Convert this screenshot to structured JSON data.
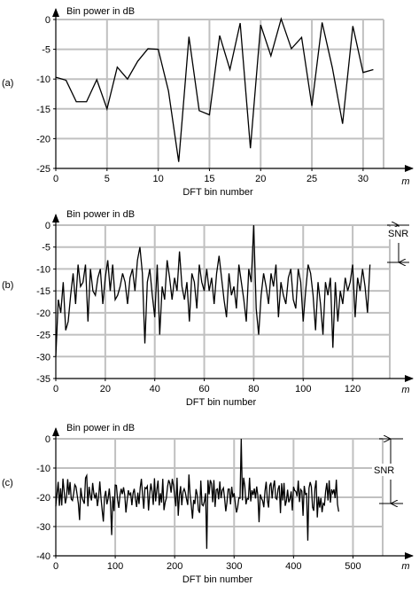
{
  "chart_data": [
    {
      "type": "line",
      "panel_label": "(a)",
      "title": "Bin power in dB",
      "xlabel": "DFT bin number",
      "x_unit_label": "m",
      "xlim": [
        0,
        32
      ],
      "ylim": [
        -25,
        0
      ],
      "xticks": [
        0,
        5,
        10,
        15,
        20,
        25,
        30
      ],
      "yticks": [
        0,
        -5,
        -10,
        -15,
        -20,
        -25
      ],
      "grid": true,
      "x": [
        0,
        1,
        2,
        3,
        4,
        5,
        6,
        7,
        8,
        9,
        10,
        11,
        12,
        13,
        14,
        15,
        16,
        17,
        18,
        19,
        20,
        21,
        22,
        23,
        24,
        25,
        26,
        27,
        28,
        29,
        30,
        31
      ],
      "values": [
        -9.7,
        -10.2,
        -13.8,
        -13.8,
        -10.1,
        -15,
        -8,
        -10,
        -7,
        -4.9,
        -5,
        -12,
        -23.9,
        -2.9,
        -15.3,
        -16,
        -2.7,
        -8.4,
        -0.6,
        -21.6,
        -0.9,
        -6.1,
        0.1,
        -4.9,
        -3,
        -14.5,
        -0.5,
        -8.1,
        -17.5,
        -1.1,
        -8.9,
        -8.4
      ],
      "annotations": []
    },
    {
      "type": "line",
      "panel_label": "(b)",
      "title": "Bin power in dB",
      "xlabel": "DFT bin number",
      "x_unit_label": "m",
      "xlim": [
        0,
        135
      ],
      "ylim": [
        -35,
        0
      ],
      "xticks": [
        0,
        20,
        40,
        60,
        80,
        100,
        120
      ],
      "yticks": [
        0,
        -5,
        -10,
        -15,
        -20,
        -25,
        -30,
        -35
      ],
      "grid": true,
      "x": [
        0,
        1,
        2,
        3,
        4,
        5,
        6,
        7,
        8,
        9,
        10,
        11,
        12,
        13,
        14,
        15,
        16,
        17,
        18,
        19,
        20,
        21,
        22,
        23,
        24,
        25,
        26,
        27,
        28,
        29,
        30,
        31,
        32,
        33,
        34,
        35,
        36,
        37,
        38,
        39,
        40,
        41,
        42,
        43,
        44,
        45,
        46,
        47,
        48,
        49,
        50,
        51,
        52,
        53,
        54,
        55,
        56,
        57,
        58,
        59,
        60,
        61,
        62,
        63,
        64,
        65,
        66,
        67,
        68,
        69,
        70,
        71,
        72,
        73,
        74,
        75,
        76,
        77,
        78,
        79,
        80,
        81,
        82,
        83,
        84,
        85,
        86,
        87,
        88,
        89,
        90,
        91,
        92,
        93,
        94,
        95,
        96,
        97,
        98,
        99,
        100,
        101,
        102,
        103,
        104,
        105,
        106,
        107,
        108,
        109,
        110,
        111,
        112,
        113,
        114,
        115,
        116,
        117,
        118,
        119,
        120,
        121,
        122,
        123,
        124,
        125,
        126,
        127
      ],
      "values": [
        -30,
        -17,
        -20,
        -13,
        -24,
        -22,
        -16,
        -11,
        -18,
        -9,
        -14,
        -13,
        -9,
        -22,
        -10,
        -15,
        -16,
        -12,
        -10,
        -18,
        -12,
        -8,
        -15,
        -9,
        -17,
        -16,
        -14,
        -11,
        -13,
        -18,
        -12,
        -10,
        -15,
        -8,
        -5,
        -11,
        -27,
        -13,
        -10,
        -16,
        -21,
        -9,
        -25,
        -14,
        -17,
        -8,
        -12,
        -17,
        -12,
        -15,
        -6,
        -14,
        -17,
        -13,
        -22,
        -11,
        -13,
        -19,
        -9,
        -13,
        -15,
        -10,
        -15,
        -12,
        -18,
        -11,
        -7,
        -12,
        -17,
        -21,
        -11,
        -16,
        -14,
        -19,
        -9,
        -13,
        -17,
        -22,
        -10,
        -13,
        0,
        -19,
        -25,
        -16,
        -11,
        -14,
        -18,
        -11,
        -14,
        -9,
        -21,
        -13,
        -16,
        -18,
        -12,
        -10,
        -17,
        -19,
        -10,
        -13,
        -22,
        -15,
        -9,
        -11,
        -16,
        -24,
        -13,
        -18,
        -25,
        -13,
        -16,
        -12,
        -28,
        -13,
        -22,
        -15,
        -18,
        -12,
        -15,
        -13,
        -9,
        -21,
        -12,
        -15,
        -10,
        -14,
        -20,
        -9
      ],
      "annotations": [
        "SNR"
      ]
    },
    {
      "type": "line",
      "panel_label": "(c)",
      "title": "Bin power in dB",
      "xlabel": "DFT bin number",
      "x_unit_label": "m",
      "xlim": [
        0,
        550
      ],
      "ylim": [
        -40,
        0
      ],
      "xticks": [
        0,
        100,
        200,
        300,
        400,
        500
      ],
      "yticks": [
        0,
        -10,
        -20,
        -30,
        -40
      ],
      "grid": true,
      "x_step": 2,
      "values": [
        -23.1,
        -18.8,
        -14.7,
        -22.9,
        -16.9,
        -22.8,
        -13.6,
        -17.8,
        -22.1,
        -20.0,
        -13.8,
        -19.2,
        -14.8,
        -20.6,
        -21.1,
        -18.8,
        -15.7,
        -16.4,
        -19.3,
        -22.2,
        -27.8,
        -16.8,
        -19.9,
        -21.2,
        -22.2,
        -13.4,
        -12.6,
        -23.1,
        -16.4,
        -19.3,
        -21.1,
        -15.1,
        -18.7,
        -20.4,
        -18.4,
        -23.0,
        -20.1,
        -14.6,
        -20.1,
        -24.4,
        -28.3,
        -19.8,
        -17.8,
        -22.4,
        -20.4,
        -17.0,
        -21.9,
        -32.9,
        -19.7,
        -24.7,
        -15.8,
        -15.9,
        -20.9,
        -23.6,
        -19.2,
        -17.1,
        -18.9,
        -16.6,
        -19.2,
        -25.2,
        -21.2,
        -17.6,
        -19.2,
        -18.6,
        -22.7,
        -18.6,
        -17.1,
        -20.6,
        -23.3,
        -18.4,
        -22.3,
        -16.7,
        -13.7,
        -19.2,
        -23.9,
        -16.7,
        -17.0,
        -16.2,
        -24.5,
        -19.0,
        -15.3,
        -18.0,
        -22.6,
        -13.5,
        -21.4,
        -17.4,
        -14.3,
        -22.8,
        -18.6,
        -21.8,
        -13.7,
        -24.4,
        -21.7,
        -20.3,
        -16.4,
        -14.1,
        -15.3,
        -18.4,
        -13.7,
        -15.9,
        -19.5,
        -23.1,
        -13.3,
        -26.3,
        -19.3,
        -16.2,
        -22.7,
        -18.1,
        -17.1,
        -18.4,
        -20.7,
        -22.6,
        -12.2,
        -19.2,
        -22.8,
        -27.3,
        -20.9,
        -22.3,
        -17.2,
        -19.2,
        -24.4,
        -25.3,
        -14.3,
        -22.5,
        -22.9,
        -21.4,
        -18.6,
        -37.6,
        -14.1,
        -19.0,
        -14.1,
        -15.3,
        -21.7,
        -14.1,
        -23.3,
        -17.4,
        -17.1,
        -20.7,
        -14.6,
        -20.3,
        -17.6,
        -16.8,
        -20.3,
        -24.8,
        -21.7,
        -17.2,
        -17.2,
        -22.4,
        -16.4,
        -20.0,
        -18.6,
        -21.9,
        -25.2,
        -23.4,
        -20.2,
        -20.3,
        0.0,
        -21.0,
        -13.3,
        -16.1,
        -22.4,
        -20.4,
        -20.6,
        -13.3,
        -21.4,
        -17.6,
        -19.2,
        -17.0,
        -20.4,
        -16.3,
        -19.4,
        -28.5,
        -19.0,
        -20.3,
        -21.2,
        -23.4,
        -17.8,
        -14.7,
        -21.0,
        -23.5,
        -16.0,
        -15.0,
        -20.4,
        -16.3,
        -14.2,
        -20.3,
        -20.7,
        -17.2,
        -15.9,
        -25.4,
        -15.2,
        -21.1,
        -15.1,
        -22.9,
        -21.2,
        -17.4,
        -21.7,
        -20.6,
        -18.0,
        -24.5,
        -16.4,
        -17.7,
        -18.0,
        -19.7,
        -14.3,
        -21.6,
        -17.3,
        -17.9,
        -26.3,
        -16.1,
        -19.0,
        -18.7,
        -34.8,
        -16.9,
        -14.8,
        -16.4,
        -23.4,
        -24.6,
        -17.0,
        -14.2,
        -26.9,
        -19.8,
        -23.5,
        -20.2,
        -25.1,
        -22.1,
        -22.6,
        -18.0,
        -15.1,
        -21.1,
        -14.2,
        -21.8,
        -17.3,
        -18.6,
        -17.3,
        -20.3,
        -14.0,
        -22.4,
        -24.9
      ],
      "annotations": [
        "SNR"
      ]
    }
  ]
}
